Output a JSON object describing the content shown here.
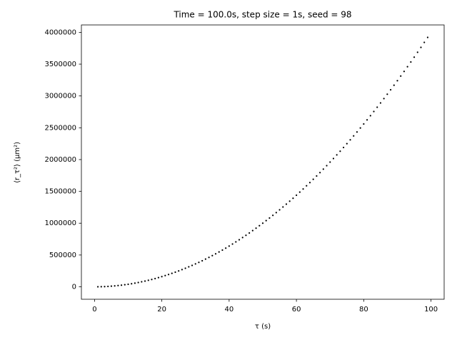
{
  "chart_data": {
    "type": "scatter",
    "title": "Time = 100.0s, step size = 1s, seed = 98",
    "x_label": "τ (s)",
    "y_label": "⟨r_τ²⟩ (μm²)",
    "color": "#000000",
    "x": [
      1,
      2,
      3,
      4,
      5,
      6,
      7,
      8,
      9,
      10,
      11,
      12,
      13,
      14,
      15,
      16,
      17,
      18,
      19,
      20,
      21,
      22,
      23,
      24,
      25,
      26,
      27,
      28,
      29,
      30,
      31,
      32,
      33,
      34,
      35,
      36,
      37,
      38,
      39,
      40,
      41,
      42,
      43,
      44,
      45,
      46,
      47,
      48,
      49,
      50,
      51,
      52,
      53,
      54,
      55,
      56,
      57,
      58,
      59,
      60,
      61,
      62,
      63,
      64,
      65,
      66,
      67,
      68,
      69,
      70,
      71,
      72,
      73,
      74,
      75,
      76,
      77,
      78,
      79,
      80,
      81,
      82,
      83,
      84,
      85,
      86,
      87,
      88,
      89,
      90,
      91,
      92,
      93,
      94,
      95,
      96,
      97,
      98,
      99
    ],
    "values": [
      400,
      1600,
      3600,
      6400,
      10000,
      14400,
      19600,
      25600,
      32400,
      40000,
      48400,
      57600,
      67600,
      78400,
      90000,
      102400,
      115600,
      129600,
      144400,
      160000,
      176400,
      193600,
      211600,
      230400,
      250000,
      270400,
      291600,
      313600,
      336400,
      360000,
      384400,
      409600,
      435600,
      462400,
      490000,
      518400,
      547600,
      577600,
      608400,
      640000,
      672400,
      705600,
      739600,
      774400,
      810000,
      846400,
      883600,
      921600,
      960400,
      1000000,
      1040400,
      1081600,
      1123600,
      1166400,
      1210000,
      1254400,
      1299600,
      1345600,
      1392400,
      1440000,
      1488400,
      1537600,
      1587600,
      1638400,
      1690000,
      1742400,
      1795600,
      1849600,
      1904400,
      1960000,
      2016400,
      2073600,
      2131600,
      2190400,
      2250000,
      2310400,
      2371600,
      2433600,
      2496400,
      2560000,
      2624400,
      2689600,
      2755600,
      2822400,
      2890000,
      2958400,
      3027600,
      3097600,
      3168400,
      3240000,
      3312400,
      3385600,
      3459600,
      3534400,
      3610000,
      3686400,
      3763600,
      3841600,
      3920400
    ],
    "xlim": [
      -3.9,
      103.9
    ],
    "xticks": [
      0,
      20,
      40,
      60,
      80,
      100
    ],
    "ylim": [
      -195620,
      4116420
    ],
    "yticks": [
      0,
      500000,
      1000000,
      1500000,
      2000000,
      2500000,
      3000000,
      3500000,
      4000000
    ],
    "grid": false
  }
}
